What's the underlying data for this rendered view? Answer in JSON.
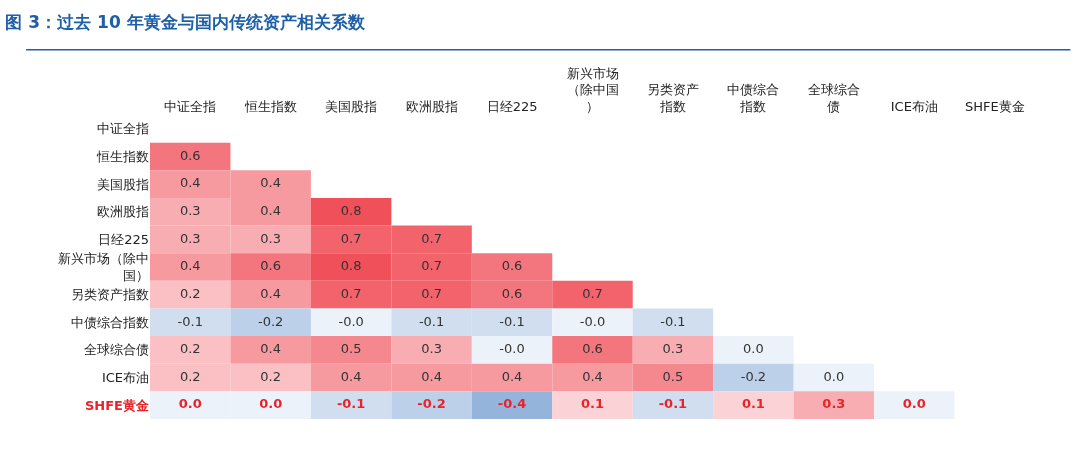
{
  "chart_data": {
    "type": "heatmap",
    "title": "图 3：过去 10 年黄金与国内传统资产相关系数",
    "categories": [
      "中证全指",
      "恒生指数",
      "美国股指",
      "欧洲股指",
      "日经225",
      "新兴市场（除中国）",
      "另类资产指数",
      "中债综合指数",
      "全球综合债",
      "ICE布油",
      "SHFE黄金"
    ],
    "y_categories": [
      "中证全指",
      "恒生指数",
      "美国股指",
      "欧洲股指",
      "日经225",
      "新兴市场（除中国）",
      "另类资产指数",
      "中债综合指数",
      "全球综合债",
      "ICE布油",
      "SHFE黄金"
    ],
    "cells": [
      [
        null,
        null,
        null,
        null,
        null,
        null,
        null,
        null,
        null,
        null,
        null
      ],
      [
        0.6,
        null,
        null,
        null,
        null,
        null,
        null,
        null,
        null,
        null,
        null
      ],
      [
        0.4,
        0.4,
        null,
        null,
        null,
        null,
        null,
        null,
        null,
        null,
        null
      ],
      [
        0.3,
        0.4,
        0.8,
        null,
        null,
        null,
        null,
        null,
        null,
        null,
        null
      ],
      [
        0.3,
        0.3,
        0.7,
        0.7,
        null,
        null,
        null,
        null,
        null,
        null,
        null
      ],
      [
        0.4,
        0.6,
        0.8,
        0.7,
        0.6,
        null,
        null,
        null,
        null,
        null,
        null
      ],
      [
        0.2,
        0.4,
        0.7,
        0.7,
        0.6,
        0.7,
        null,
        null,
        null,
        null,
        null
      ],
      [
        -0.1,
        -0.2,
        -0.0,
        -0.1,
        -0.1,
        -0.0,
        -0.1,
        null,
        null,
        null,
        null
      ],
      [
        0.2,
        0.4,
        0.5,
        0.3,
        -0.0,
        0.6,
        0.3,
        0.0,
        null,
        null,
        null
      ],
      [
        0.2,
        0.2,
        0.4,
        0.4,
        0.4,
        0.4,
        0.5,
        -0.2,
        0.0,
        null,
        null
      ],
      [
        0.0,
        0.0,
        -0.1,
        -0.2,
        -0.4,
        0.1,
        -0.1,
        0.1,
        0.3,
        0.0,
        null
      ]
    ],
    "cell_labels": [
      [
        null,
        null,
        null,
        null,
        null,
        null,
        null,
        null,
        null,
        null,
        null
      ],
      [
        "0.6",
        null,
        null,
        null,
        null,
        null,
        null,
        null,
        null,
        null,
        null
      ],
      [
        "0.4",
        "0.4",
        null,
        null,
        null,
        null,
        null,
        null,
        null,
        null,
        null
      ],
      [
        "0.3",
        "0.4",
        "0.8",
        null,
        null,
        null,
        null,
        null,
        null,
        null,
        null
      ],
      [
        "0.3",
        "0.3",
        "0.7",
        "0.7",
        null,
        null,
        null,
        null,
        null,
        null,
        null
      ],
      [
        "0.4",
        "0.6",
        "0.8",
        "0.7",
        "0.6",
        null,
        null,
        null,
        null,
        null,
        null
      ],
      [
        "0.2",
        "0.4",
        "0.7",
        "0.7",
        "0.6",
        "0.7",
        null,
        null,
        null,
        null,
        null
      ],
      [
        "-0.1",
        "-0.2",
        "-0.0",
        "-0.1",
        "-0.1",
        "-0.0",
        "-0.1",
        null,
        null,
        null,
        null
      ],
      [
        "0.2",
        "0.4",
        "0.5",
        "0.3",
        "-0.0",
        "0.6",
        "0.3",
        "0.0",
        null,
        null,
        null
      ],
      [
        "0.2",
        "0.2",
        "0.4",
        "0.4",
        "0.4",
        "0.4",
        "0.5",
        "-0.2",
        "0.0",
        null,
        null
      ],
      [
        "0.0",
        "0.0",
        "-0.1",
        "-0.2",
        "-0.4",
        "0.1",
        "-0.1",
        "0.1",
        "0.3",
        "0.0",
        null
      ]
    ]
  }
}
